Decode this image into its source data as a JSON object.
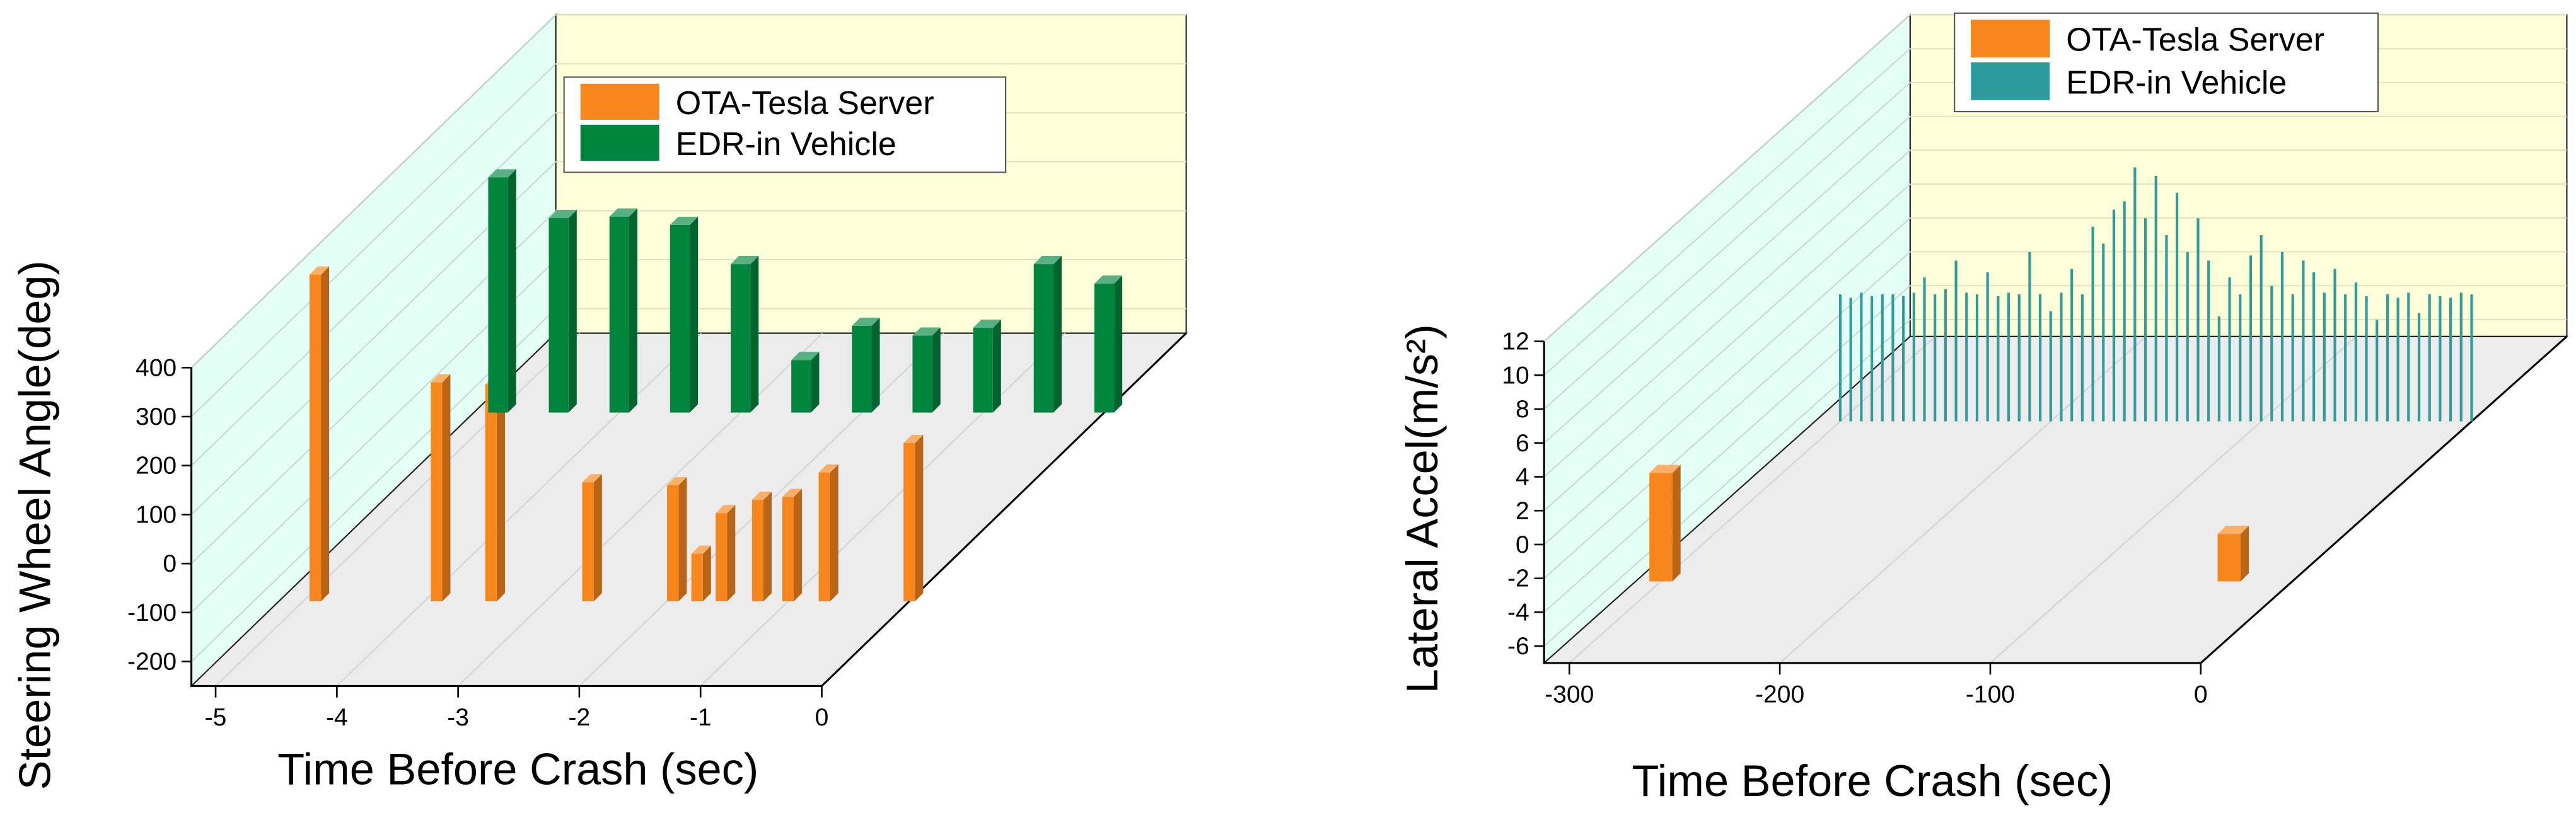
{
  "chart_data": [
    {
      "type": "bar3d",
      "xlabel": "Time Before Crash (sec)",
      "ylabel": "Steering Wheel Angle(deg)",
      "xlim": [
        -5.2,
        0
      ],
      "xticks": [
        -5,
        -4,
        -3,
        -2,
        -1,
        0
      ],
      "ylim": [
        -250,
        400
      ],
      "yticks": [
        -200,
        -100,
        0,
        100,
        200,
        300,
        400
      ],
      "grid": true,
      "series": [
        {
          "name": "OTA-Tesla Server",
          "color": "#f7861c",
          "x": [
            -4.9,
            -3.9,
            -3.45,
            -2.65,
            -1.95,
            -1.75,
            -1.55,
            -1.25,
            -1.0,
            -0.7,
            0
          ],
          "values": [
            417,
            197,
            193,
            -7,
            -13,
            -153,
            -70,
            -43,
            -37,
            13,
            73
          ]
        },
        {
          "name": "EDR-in Vehicle",
          "color": "#00853f",
          "x": [
            -5,
            -4.5,
            -4,
            -3.5,
            -3,
            -2.5,
            -2,
            -1.5,
            -1,
            -0.5,
            0
          ],
          "values": [
            230,
            147,
            150,
            133,
            53,
            -143,
            -73,
            -93,
            -77,
            53,
            13
          ]
        }
      ]
    },
    {
      "type": "bar3d",
      "xlabel": "Time Before Crash (sec)",
      "ylabel": "Lateral Accel(m/s²)",
      "xlim": [
        -312,
        0
      ],
      "xticks": [
        -300,
        -200,
        -100,
        0
      ],
      "ylim": [
        -7,
        12
      ],
      "yticks": [
        -6,
        -4,
        -2,
        0,
        2,
        4,
        6,
        8,
        10,
        12
      ],
      "grid": true,
      "series": [
        {
          "name": "OTA-Tesla Server",
          "color": "#f7861c",
          "x": [
            -300,
            -30
          ],
          "values": [
            -0.6,
            -4.2
          ]
        },
        {
          "name": "EDR-in Vehicle",
          "color": "#2e9c9c",
          "x": [
            -300,
            -295,
            -290,
            -285,
            -280,
            -275,
            -270,
            -265,
            -260,
            -255,
            -250,
            -245,
            -240,
            -235,
            -230,
            -225,
            -220,
            -215,
            -210,
            -205,
            -200,
            -195,
            -190,
            -185,
            -180,
            -175,
            -170,
            -165,
            -160,
            -155,
            -150,
            -145,
            -140,
            -135,
            -130,
            -125,
            -120,
            -115,
            -110,
            -105,
            -100,
            -95,
            -90,
            -85,
            -80,
            -75,
            -70,
            -65,
            -60,
            -55,
            -50,
            -45,
            -40,
            -35,
            -30,
            -25,
            -20,
            -15,
            -10,
            -5,
            0
          ],
          "values": [
            0.5,
            0.3,
            0.6,
            0.4,
            0.5,
            0.5,
            0.4,
            0.6,
            1.5,
            0.5,
            0.8,
            2.5,
            0.6,
            0.5,
            1.8,
            0.4,
            0.6,
            0.5,
            3.0,
            0.5,
            -0.5,
            0.6,
            2.0,
            0.5,
            4.5,
            3.5,
            5.5,
            6.0,
            8.0,
            5.0,
            7.5,
            4.0,
            6.5,
            3.0,
            5.0,
            2.5,
            -0.8,
            1.5,
            0.5,
            2.8,
            4.0,
            1.0,
            3.0,
            0.5,
            2.5,
            1.8,
            0.6,
            2.0,
            0.5,
            1.2,
            0.4,
            -1.0,
            0.5,
            0.3,
            0.6,
            -0.6,
            0.5,
            0.4,
            0.3,
            0.6,
            0.5
          ]
        }
      ]
    }
  ]
}
